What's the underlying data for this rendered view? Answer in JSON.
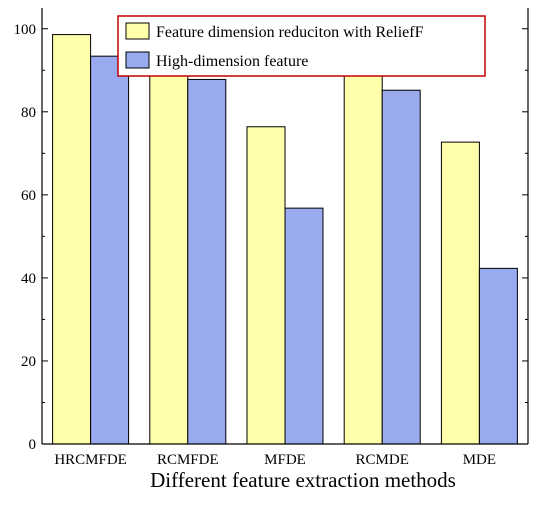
{
  "chart_data": {
    "type": "bar",
    "title": "",
    "xlabel": "Different feature extraction methods",
    "ylabel": "",
    "categories": [
      "HRCMFDE",
      "RCMFDE",
      "MFDE",
      "RCMDE",
      "MDE"
    ],
    "series": [
      {
        "name": "Feature dimension reduciton with ReliefF",
        "color": "#ffffaa",
        "values": [
          98.6,
          94.5,
          76.4,
          92.0,
          72.7
        ]
      },
      {
        "name": "High-dimension feature",
        "color": "#99aaee",
        "values": [
          93.4,
          87.8,
          56.8,
          85.2,
          42.3
        ]
      }
    ],
    "ylim": [
      0,
      105
    ],
    "yticks": [
      0,
      20,
      40,
      60,
      80,
      100
    ],
    "grid": false,
    "legend": {
      "position": "top-right",
      "border_color": "#c00000"
    }
  }
}
